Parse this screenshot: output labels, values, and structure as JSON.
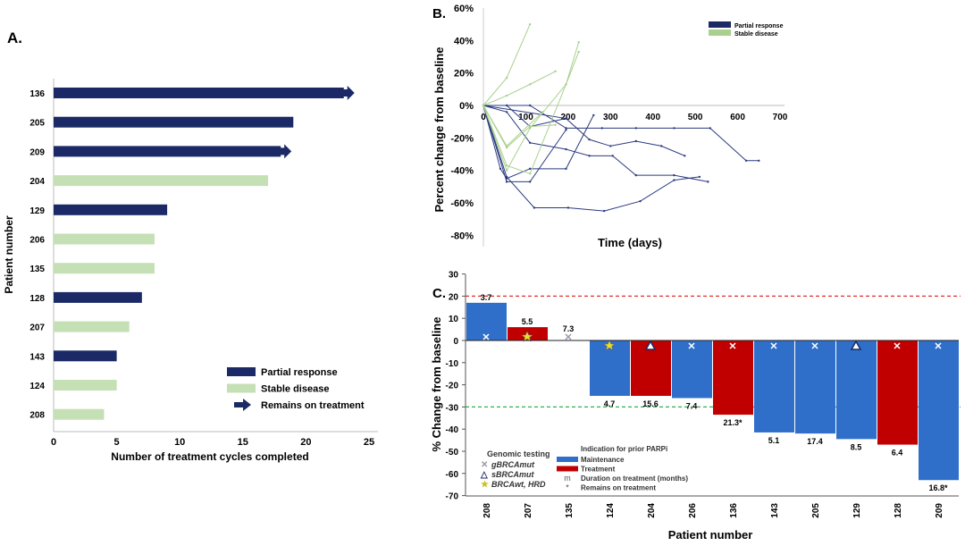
{
  "chart_data": [
    {
      "panel": "A.",
      "type": "bar",
      "orientation": "horizontal",
      "categories": [
        "136",
        "205",
        "209",
        "204",
        "129",
        "206",
        "135",
        "128",
        "207",
        "143",
        "124",
        "208"
      ],
      "values": [
        23,
        19,
        18,
        17,
        9,
        8,
        8,
        7,
        6,
        5,
        5,
        4
      ],
      "response": [
        "PR",
        "PR",
        "PR",
        "SD",
        "PR",
        "SD",
        "SD",
        "PR",
        "SD",
        "PR",
        "SD",
        "SD"
      ],
      "remains_on_treatment": [
        true,
        false,
        true,
        false,
        false,
        false,
        false,
        false,
        false,
        false,
        false,
        false
      ],
      "xlabel": "Number of treatment cycles completed",
      "ylabel": "Patient number",
      "xlim": [
        0,
        25
      ],
      "xticks": [
        "0",
        "5",
        "10",
        "15",
        "20",
        "25"
      ],
      "legend": {
        "placement": "bottom-right",
        "items": [
          "Partial response",
          "Stable disease",
          "Remains on treatment"
        ]
      },
      "colors": {
        "PR": "#1b2a66",
        "SD": "#c5e0b4"
      }
    },
    {
      "panel": "B.",
      "type": "line",
      "xlabel": "Time (days)",
      "ylabel": "Percent change from baseline",
      "xlim": [
        0,
        700
      ],
      "ylim": [
        -80,
        60
      ],
      "xticks": [
        "0",
        "100",
        "200",
        "300",
        "400",
        "500",
        "600",
        "700"
      ],
      "yticks": [
        "60%",
        "40%",
        "20%",
        "0%",
        "-20%",
        "-40%",
        "-60%",
        "-80%"
      ],
      "legend": {
        "placement": "top-right",
        "items": [
          "Partial response",
          "Stable disease"
        ]
      },
      "series": [
        {
          "group": "PR",
          "points": [
            [
              0,
              0
            ],
            [
              55,
              -4
            ],
            [
              110,
              -23
            ],
            [
              195,
              -27
            ],
            [
              250,
              -31
            ],
            [
              305,
              -31
            ],
            [
              360,
              -43
            ],
            [
              450,
              -43
            ],
            [
              530,
              -47
            ]
          ]
        },
        {
          "group": "PR",
          "points": [
            [
              0,
              0
            ],
            [
              55,
              0
            ],
            [
              110,
              -13
            ],
            [
              195,
              -8
            ]
          ]
        },
        {
          "group": "PR",
          "points": [
            [
              0,
              0
            ],
            [
              110,
              0
            ],
            [
              195,
              -14
            ],
            [
              280,
              -14
            ],
            [
              360,
              -14
            ],
            [
              450,
              -14
            ],
            [
              535,
              -14
            ],
            [
              620,
              -34
            ],
            [
              650,
              -34
            ]
          ]
        },
        {
          "group": "PR",
          "points": [
            [
              0,
              0
            ],
            [
              195,
              -8
            ],
            [
              250,
              -21
            ],
            [
              300,
              -25
            ],
            [
              360,
              -22
            ],
            [
              420,
              -25
            ],
            [
              475,
              -31
            ]
          ]
        },
        {
          "group": "PR",
          "points": [
            [
              0,
              0
            ],
            [
              40,
              -39
            ],
            [
              55,
              -45
            ],
            [
              110,
              -39
            ],
            [
              195,
              -39
            ],
            [
              260,
              -6
            ]
          ]
        },
        {
          "group": "PR",
          "points": [
            [
              0,
              0
            ],
            [
              55,
              -47
            ],
            [
              110,
              -47
            ],
            [
              195,
              -15
            ]
          ]
        },
        {
          "group": "PR",
          "points": [
            [
              0,
              0
            ],
            [
              55,
              -44
            ],
            [
              120,
              -63
            ],
            [
              200,
              -63
            ],
            [
              285,
              -65
            ],
            [
              370,
              -59
            ],
            [
              450,
              -46
            ],
            [
              510,
              -44
            ]
          ]
        },
        {
          "group": "SD",
          "points": [
            [
              0,
              0
            ],
            [
              55,
              17
            ],
            [
              110,
              50
            ]
          ]
        },
        {
          "group": "SD",
          "points": [
            [
              0,
              0
            ],
            [
              55,
              6
            ],
            [
              110,
              13
            ],
            [
              170,
              21
            ]
          ]
        },
        {
          "group": "SD",
          "points": [
            [
              0,
              0
            ],
            [
              55,
              -26
            ],
            [
              110,
              -13
            ],
            [
              170,
              -12
            ]
          ]
        },
        {
          "group": "SD",
          "points": [
            [
              0,
              0
            ],
            [
              55,
              -25
            ],
            [
              140,
              -4
            ]
          ]
        },
        {
          "group": "SD",
          "points": [
            [
              0,
              0
            ],
            [
              55,
              -37
            ],
            [
              110,
              -42
            ],
            [
              195,
              13
            ],
            [
              225,
              39
            ]
          ]
        },
        {
          "group": "SD",
          "points": [
            [
              0,
              0
            ],
            [
              55,
              -40
            ],
            [
              110,
              -14
            ],
            [
              195,
              13
            ],
            [
              225,
              33
            ]
          ]
        }
      ],
      "colors": {
        "PR": "#2b3a80",
        "SD": "#a9d08e"
      }
    },
    {
      "panel": "C.",
      "type": "bar",
      "categories": [
        "208",
        "207",
        "135",
        "124",
        "204",
        "206",
        "136",
        "143",
        "205",
        "129",
        "128",
        "209"
      ],
      "values": [
        17,
        6,
        0,
        -25,
        -25,
        -26,
        -33.5,
        -41.5,
        -42,
        -44.5,
        -47,
        -63
      ],
      "indication": [
        "M",
        "T",
        "",
        "M",
        "T",
        "M",
        "T",
        "M",
        "M",
        "M",
        "T",
        "M"
      ],
      "duration_labels": [
        "3.7",
        "5.5",
        "7.3",
        "4.7",
        "15.6",
        "7.4",
        "21.3*",
        "5.1",
        "17.4",
        "8.5",
        "6.4",
        "16.8*"
      ],
      "genomic": [
        "g",
        "star",
        "g",
        "star",
        "tri",
        "g",
        "g",
        "g",
        "g",
        "tri",
        "g",
        "g"
      ],
      "xlabel": "Patient number",
      "ylabel": "% Change from baseline",
      "ylim": [
        -70,
        30
      ],
      "yticks": [
        "30",
        "20",
        "10",
        "0",
        "-10",
        "-20",
        "-30",
        "-40",
        "-50",
        "-60",
        "-70"
      ],
      "reference_lines": [
        20,
        -30
      ],
      "legend_genomic": {
        "title": "Genomic testing",
        "items": [
          "gBRCAmut",
          "sBRCAmut",
          "BRCAwt, HRD"
        ]
      },
      "legend_indication": {
        "title": "Indication for prior PARPi",
        "items": [
          "Maintenance",
          "Treatment"
        ],
        "notes": [
          [
            "m",
            "Duration on treatment (months)"
          ],
          [
            "*",
            "Remains on treatment"
          ]
        ]
      },
      "colors": {
        "M": "#2f6fc9",
        "T": "#c00000",
        "ref_top": "#e03030",
        "ref_bottom": "#30b050"
      }
    }
  ]
}
